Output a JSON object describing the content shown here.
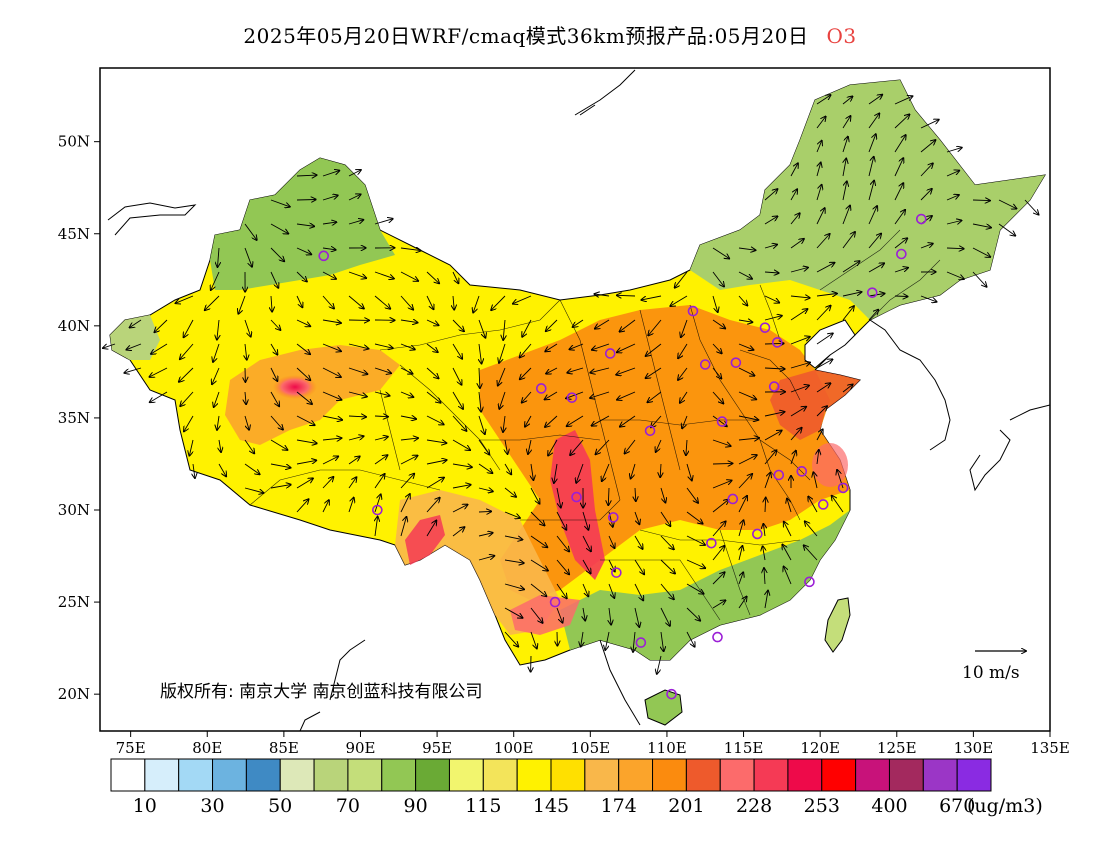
{
  "title": {
    "main": "2025年05月20日WRF/cmaq模式36km预报产品:05月20日",
    "pollutant": "O3"
  },
  "map": {
    "lon_range": [
      73,
      135
    ],
    "lat_range": [
      18,
      54
    ],
    "lon_ticks": [
      "75E",
      "80E",
      "85E",
      "90E",
      "95E",
      "100E",
      "105E",
      "110E",
      "115E",
      "120E",
      "125E",
      "130E",
      "135E"
    ],
    "lat_ticks": [
      "20N",
      "25N",
      "30N",
      "35N",
      "40N",
      "45N",
      "50N"
    ],
    "copyright": "版权所有: 南京大学 南京创蓝科技有限公司",
    "wind_reference": "10 m/s"
  },
  "colorbar": {
    "colors": [
      "#ffffff",
      "#d6eefb",
      "#a3d9f5",
      "#6cb3e0",
      "#3f8ac4",
      "#dde8b8",
      "#b9d47a",
      "#c4de7a",
      "#92c754",
      "#6aaa35",
      "#f2f56e",
      "#f3e45a",
      "#fff200",
      "#ffe000",
      "#f9b74a",
      "#fba42b",
      "#fb8b0e",
      "#ee5a2c",
      "#fc6b6b",
      "#f53a55",
      "#ee0a4a",
      "#ff0000",
      "#c8127a",
      "#a3295e",
      "#9b36c6",
      "#8a2be2"
    ],
    "labels": [
      "10",
      "30",
      "50",
      "70",
      "90",
      "115",
      "145",
      "174",
      "201",
      "228",
      "253",
      "400",
      "670"
    ],
    "unit": "(ug/m3)"
  },
  "stations": [
    {
      "lon": 87.6,
      "lat": 43.8
    },
    {
      "lon": 101.8,
      "lat": 36.6
    },
    {
      "lon": 103.8,
      "lat": 36.1
    },
    {
      "lon": 106.3,
      "lat": 38.5
    },
    {
      "lon": 111.7,
      "lat": 40.8
    },
    {
      "lon": 112.5,
      "lat": 37.9
    },
    {
      "lon": 114.5,
      "lat": 38.0
    },
    {
      "lon": 116.4,
      "lat": 39.9
    },
    {
      "lon": 117.2,
      "lat": 39.1
    },
    {
      "lon": 117.0,
      "lat": 36.7
    },
    {
      "lon": 113.6,
      "lat": 34.8
    },
    {
      "lon": 108.9,
      "lat": 34.3
    },
    {
      "lon": 104.1,
      "lat": 30.7
    },
    {
      "lon": 106.5,
      "lat": 29.6
    },
    {
      "lon": 91.1,
      "lat": 30.0
    },
    {
      "lon": 102.7,
      "lat": 25.0
    },
    {
      "lon": 106.7,
      "lat": 26.6
    },
    {
      "lon": 108.3,
      "lat": 22.8
    },
    {
      "lon": 113.3,
      "lat": 23.1
    },
    {
      "lon": 110.3,
      "lat": 20.0
    },
    {
      "lon": 112.9,
      "lat": 28.2
    },
    {
      "lon": 115.9,
      "lat": 28.7
    },
    {
      "lon": 114.3,
      "lat": 30.6
    },
    {
      "lon": 117.3,
      "lat": 31.9
    },
    {
      "lon": 118.8,
      "lat": 32.1
    },
    {
      "lon": 120.2,
      "lat": 30.3
    },
    {
      "lon": 121.5,
      "lat": 31.2
    },
    {
      "lon": 119.3,
      "lat": 26.1
    },
    {
      "lon": 123.4,
      "lat": 41.8
    },
    {
      "lon": 125.3,
      "lat": 43.9
    },
    {
      "lon": 126.6,
      "lat": 45.8
    }
  ]
}
